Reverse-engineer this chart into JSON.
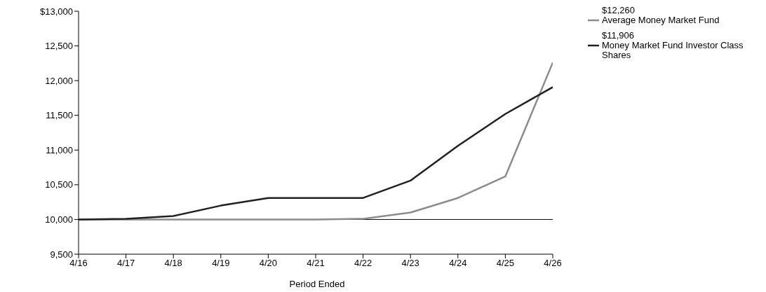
{
  "chart_data": {
    "type": "line",
    "xlabel": "Period Ended",
    "categories": [
      "4/16",
      "4/17",
      "4/18",
      "4/19",
      "4/20",
      "4/21",
      "4/22",
      "4/23",
      "4/24",
      "4/25",
      "4/26"
    ],
    "series": [
      {
        "name": "Average Money Market Fund",
        "color": "#8c8c8c",
        "values": [
          10000,
          10000,
          10000,
          10000,
          10000,
          10000,
          10010,
          10100,
          10310,
          10620,
          12260
        ]
      },
      {
        "name": "Money Market Fund Investor Class Shares",
        "color": "#231f20",
        "values": [
          10000,
          10010,
          10050,
          10200,
          10310,
          10310,
          10310,
          10560,
          11060,
          11520,
          11906
        ]
      }
    ],
    "annotations": [
      "$12,260",
      "$11,906"
    ],
    "ylim": [
      9500,
      13000
    ],
    "yticks": [
      {
        "value": 9500,
        "label": "9,500"
      },
      {
        "value": 10000,
        "label": "10,000"
      },
      {
        "value": 10500,
        "label": "10,500"
      },
      {
        "value": 11000,
        "label": "11,000"
      },
      {
        "value": 11500,
        "label": "11,500"
      },
      {
        "value": 12000,
        "label": "12,000"
      },
      {
        "value": 12500,
        "label": "12,500"
      },
      {
        "value": 13000,
        "label": "$13,000"
      }
    ],
    "ref_lines": [
      {
        "axis": "y",
        "value": 10000,
        "color": "#000000"
      }
    ],
    "grid": false,
    "legend": "top right",
    "marker": "none",
    "line_style": "solid"
  }
}
